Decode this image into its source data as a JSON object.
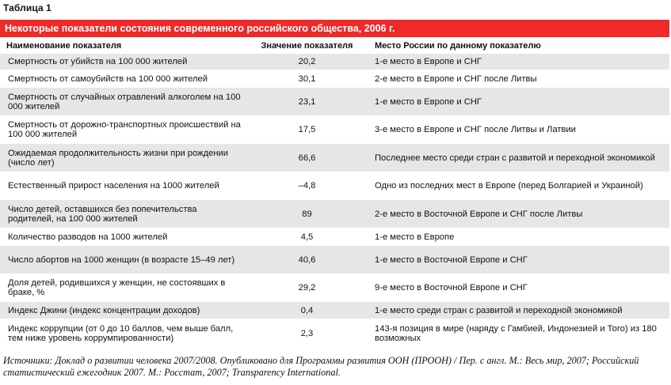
{
  "caption": "Таблица 1",
  "title": "Некоторые показатели состояния современного российского общества, 2006 г.",
  "headers": {
    "name": "Наименование показателя",
    "value": "Значение показателя",
    "rank": "Место России по данному показателю"
  },
  "rows": [
    {
      "name": "Смертность от убийств на 100 000 жителей",
      "value": "20,2",
      "rank": "1-е место в Европе и СНГ"
    },
    {
      "name": "Смертность от самоубийств на 100 000 жителей",
      "value": "30,1",
      "rank": "2-е место в Европе и СНГ после Литвы"
    },
    {
      "name": "Смертность от случайных отравлений алкоголем на 100 000 жителей",
      "value": "23,1",
      "rank": "1-е место в Европе и СНГ"
    },
    {
      "name": "Смертность от дорожно-транспортных происшествий на 100 000 жителей",
      "value": "17,5",
      "rank": "3-е место в Европе и СНГ после Литвы и Латвии"
    },
    {
      "name": "Ожидаемая продолжительность жизни при рождении (число лет)",
      "value": "66,6",
      "rank": "Последнее место среди стран с развитой и переходной экономикой"
    },
    {
      "name": "Естественный прирост населения на 1000 жителей",
      "value": "–4,8",
      "rank": "Одно из последних мест в Европе (перед Болгарией и Украиной)"
    },
    {
      "name": "Число детей, оставшихся без попечительства родителей, на 100 000 жителей",
      "value": "89",
      "rank": "2-е место в Восточной Европе и СНГ после Литвы"
    },
    {
      "name": "Количество разводов на 1000 жителей",
      "value": "4,5",
      "rank": "1-е место в Европе"
    },
    {
      "name": "Число абортов на 1000 женщин (в возрасте 15–49 лет)",
      "value": "40,6",
      "rank": "1-е место в Восточной Европе и СНГ"
    },
    {
      "name": "Доля детей, родившихся у женщин, не состоявших в браке, %",
      "value": "29,2",
      "rank": "9-е место в Восточной Европе и СНГ"
    },
    {
      "name": "Индекс Джини (индекс концентрации доходов)",
      "value": "0,4",
      "rank": "1-е место среди стран с развитой и переходной экономикой"
    },
    {
      "name": "Индекс коррупции (от 0 до 10 баллов, чем выше балл, тем ниже уровень коррумпированности)",
      "value": "2,3",
      "rank": "143-я позиция в мире (наряду с Гамбией, Индонезией и Того) из 180 возможных"
    }
  ],
  "source": "Источники: Доклад о развитии человека 2007/2008. Опубликовано для Программы развития ООН (ПРООН) / Пер. с англ. М.: Весь мир, 2007; Российский статистический ежегодник 2007. М.: Росстат, 2007; Transparency International.",
  "colors": {
    "title_bar": "#ef2a29",
    "stripe": "#e6e6e6"
  }
}
